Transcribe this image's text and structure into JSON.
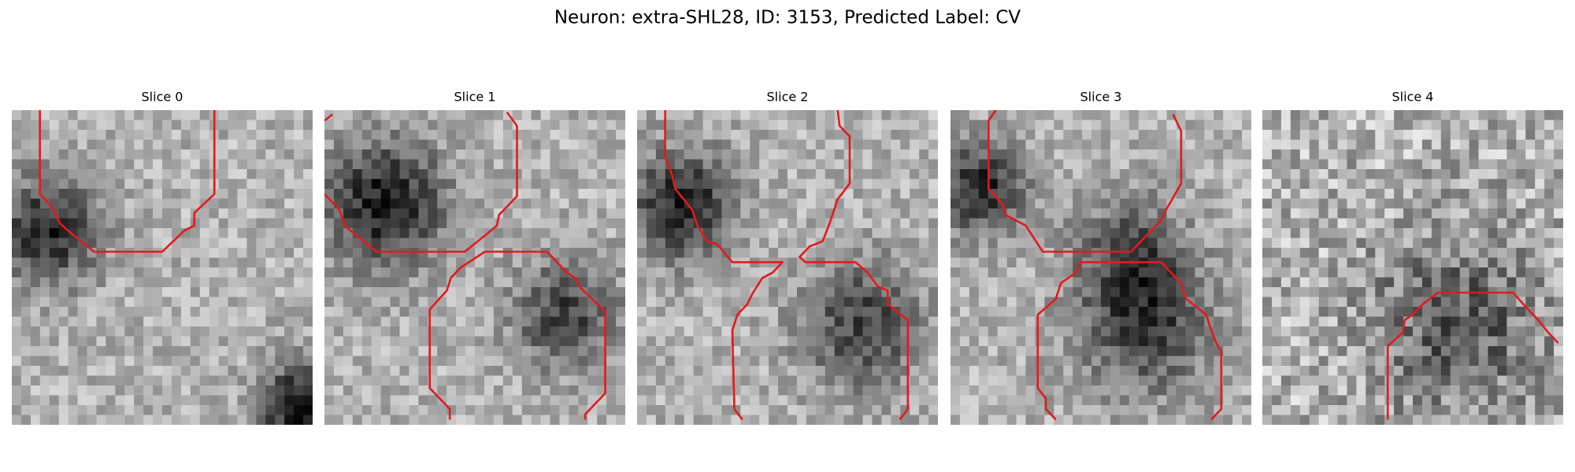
{
  "title": "Neuron: extra-SHL28, ID: 3153, Predicted Label: CV",
  "panels": [
    {
      "title": "Slice 0"
    },
    {
      "title": "Slice 1"
    },
    {
      "title": "Slice 2"
    },
    {
      "title": "Slice 3"
    },
    {
      "title": "Slice 4"
    }
  ]
}
